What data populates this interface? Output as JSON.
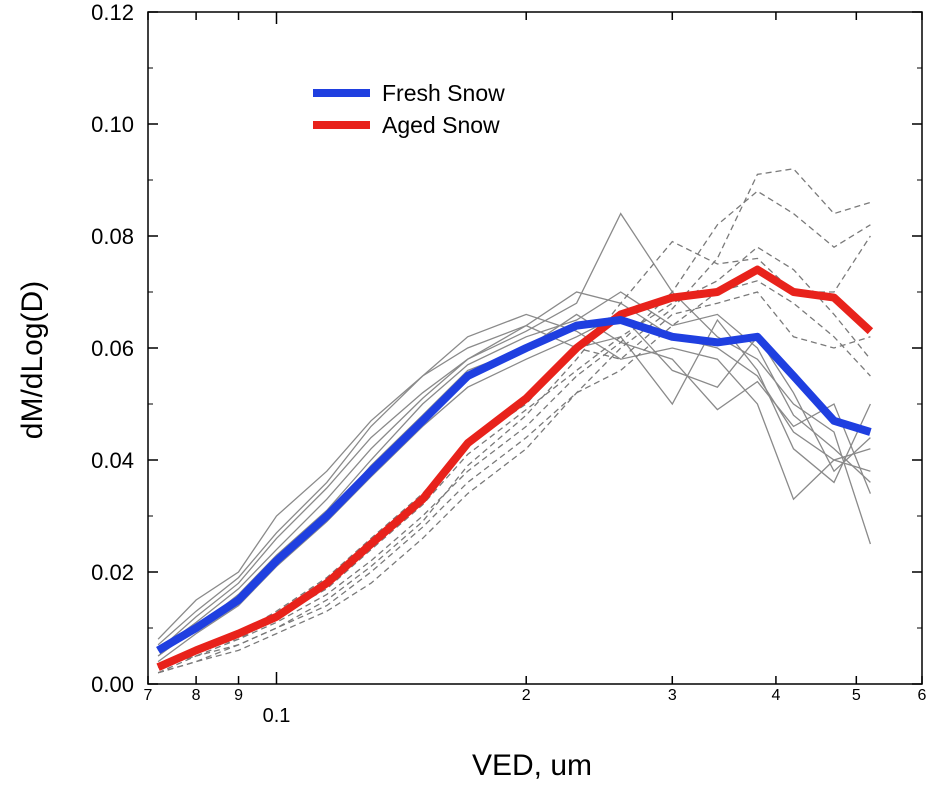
{
  "chart_data": {
    "type": "line",
    "xscale": "log",
    "xlim": [
      0.07,
      0.6
    ],
    "ylim": [
      0.0,
      0.12
    ],
    "xlabel": "VED, um",
    "ylabel": "dM/dLog(D)",
    "x_ticks": [
      {
        "value": 0.07,
        "label": "7"
      },
      {
        "value": 0.08,
        "label": "8"
      },
      {
        "value": 0.09,
        "label": "9"
      },
      {
        "value": 0.1,
        "label": "0.1"
      },
      {
        "value": 0.2,
        "label": "2"
      },
      {
        "value": 0.3,
        "label": "3"
      },
      {
        "value": 0.4,
        "label": "4"
      },
      {
        "value": 0.5,
        "label": "5"
      },
      {
        "value": 0.6,
        "label": "6"
      }
    ],
    "y_ticks": [
      "0.00",
      "0.02",
      "0.04",
      "0.06",
      "0.08",
      "0.10",
      "0.12"
    ],
    "x": [
      0.072,
      0.08,
      0.09,
      0.1,
      0.115,
      0.13,
      0.15,
      0.17,
      0.2,
      0.23,
      0.26,
      0.3,
      0.34,
      0.38,
      0.42,
      0.47,
      0.52
    ],
    "legend": [
      {
        "name": "Fresh Snow",
        "color": "#1f3fe0"
      },
      {
        "name": "Aged Snow",
        "color": "#e8221b"
      }
    ],
    "series": [
      {
        "name": "Fresh Snow",
        "color": "#1f3fe0",
        "values": [
          0.006,
          0.01,
          0.015,
          0.022,
          0.03,
          0.038,
          0.047,
          0.055,
          0.06,
          0.064,
          0.065,
          0.062,
          0.061,
          0.062,
          0.055,
          0.047,
          0.045
        ]
      },
      {
        "name": "Aged Snow",
        "color": "#e8221b",
        "values": [
          0.003,
          0.006,
          0.009,
          0.012,
          0.018,
          0.025,
          0.033,
          0.043,
          0.051,
          0.06,
          0.066,
          0.069,
          0.07,
          0.074,
          0.07,
          0.069,
          0.063
        ]
      }
    ],
    "fresh_samples": [
      [
        0.008,
        0.015,
        0.02,
        0.03,
        0.038,
        0.047,
        0.055,
        0.06,
        0.064,
        0.07,
        0.068,
        0.062,
        0.06,
        0.055,
        0.045,
        0.04,
        0.038
      ],
      [
        0.006,
        0.012,
        0.018,
        0.026,
        0.035,
        0.044,
        0.052,
        0.058,
        0.063,
        0.068,
        0.084,
        0.07,
        0.062,
        0.058,
        0.05,
        0.045,
        0.025
      ],
      [
        0.005,
        0.01,
        0.016,
        0.023,
        0.031,
        0.04,
        0.05,
        0.057,
        0.062,
        0.065,
        0.07,
        0.064,
        0.066,
        0.06,
        0.048,
        0.042,
        0.036
      ],
      [
        0.007,
        0.013,
        0.019,
        0.027,
        0.036,
        0.046,
        0.055,
        0.062,
        0.066,
        0.063,
        0.058,
        0.06,
        0.058,
        0.05,
        0.033,
        0.04,
        0.042
      ],
      [
        0.004,
        0.009,
        0.014,
        0.021,
        0.029,
        0.037,
        0.046,
        0.053,
        0.058,
        0.062,
        0.066,
        0.056,
        0.053,
        0.062,
        0.052,
        0.038,
        0.044
      ],
      [
        0.006,
        0.011,
        0.017,
        0.024,
        0.033,
        0.042,
        0.051,
        0.058,
        0.064,
        0.06,
        0.062,
        0.05,
        0.065,
        0.056,
        0.042,
        0.036,
        0.05
      ],
      [
        0.005,
        0.01,
        0.015,
        0.022,
        0.03,
        0.039,
        0.048,
        0.056,
        0.06,
        0.066,
        0.061,
        0.058,
        0.049,
        0.054,
        0.046,
        0.05,
        0.034
      ]
    ],
    "aged_samples": [
      [
        0.002,
        0.004,
        0.006,
        0.009,
        0.013,
        0.018,
        0.026,
        0.034,
        0.042,
        0.052,
        0.06,
        0.067,
        0.076,
        0.091,
        0.092,
        0.084,
        0.086
      ],
      [
        0.003,
        0.005,
        0.008,
        0.011,
        0.016,
        0.022,
        0.03,
        0.038,
        0.046,
        0.055,
        0.061,
        0.07,
        0.082,
        0.088,
        0.084,
        0.078,
        0.082
      ],
      [
        0.002,
        0.005,
        0.007,
        0.01,
        0.015,
        0.021,
        0.029,
        0.039,
        0.048,
        0.058,
        0.068,
        0.079,
        0.075,
        0.076,
        0.07,
        0.07,
        0.08
      ],
      [
        0.003,
        0.006,
        0.009,
        0.013,
        0.019,
        0.026,
        0.034,
        0.043,
        0.05,
        0.06,
        0.058,
        0.066,
        0.068,
        0.07,
        0.062,
        0.06,
        0.062
      ],
      [
        0.002,
        0.004,
        0.007,
        0.01,
        0.014,
        0.02,
        0.028,
        0.036,
        0.044,
        0.052,
        0.056,
        0.064,
        0.07,
        0.072,
        0.068,
        0.062,
        0.055
      ],
      [
        0.003,
        0.006,
        0.008,
        0.012,
        0.017,
        0.024,
        0.032,
        0.041,
        0.049,
        0.056,
        0.062,
        0.068,
        0.072,
        0.078,
        0.074,
        0.066,
        0.058
      ]
    ]
  }
}
